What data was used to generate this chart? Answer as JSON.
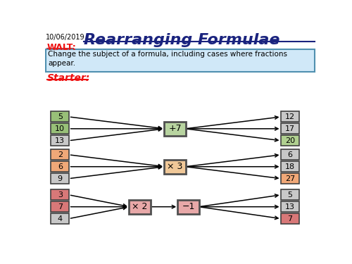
{
  "title": "Rearranging Formulae",
  "date": "10/06/2019",
  "walt": "WALT:",
  "walt_desc": "Change the subject of a formula, including cases\nwhere fractions appear.",
  "starter": "Starter:",
  "groups": [
    {
      "inputs": [
        "5",
        "10",
        "13"
      ],
      "op": "+7",
      "op2": null,
      "outputs": [
        "12",
        "17",
        "20"
      ],
      "op_color": "#b8d4a0",
      "op_border": "#505050",
      "input_colors": [
        "#98c078",
        "#98c078",
        "#c8c8c8"
      ],
      "output_colors": [
        "#c8c8c8",
        "#c8c8c8",
        "#b0d090"
      ]
    },
    {
      "inputs": [
        "2",
        "6",
        "9"
      ],
      "op": "× 3",
      "op2": null,
      "outputs": [
        "6",
        "18",
        "27"
      ],
      "op_color": "#f0c898",
      "op_border": "#505050",
      "input_colors": [
        "#f0a878",
        "#f0a878",
        "#c8c8c8"
      ],
      "output_colors": [
        "#c8c8c8",
        "#c8c8c8",
        "#f0a878"
      ]
    },
    {
      "inputs": [
        "3",
        "7",
        "4"
      ],
      "op": "× 2",
      "op2": "−1",
      "outputs": [
        "5",
        "13",
        "7"
      ],
      "op_color": "#e8a8a8",
      "op_border": "#505050",
      "input_colors": [
        "#d87878",
        "#d87878",
        "#c8c8c8"
      ],
      "output_colors": [
        "#c8c8c8",
        "#c8c8c8",
        "#d87878"
      ]
    }
  ],
  "bg_color": "#ffffff",
  "walt_box_color": "#d0e8f8",
  "walt_border_color": "#5090b0",
  "title_color": "#1a237e",
  "red_color": "#ee1111"
}
